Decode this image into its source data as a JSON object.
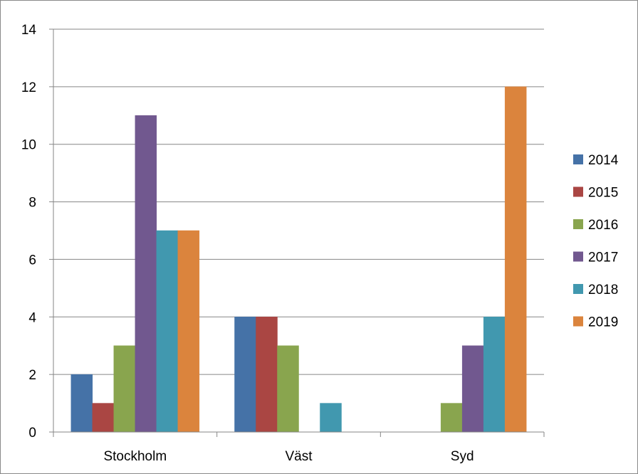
{
  "chart_data": {
    "type": "bar",
    "title": "",
    "xlabel": "",
    "ylabel": "",
    "ylim": [
      0,
      14
    ],
    "yticks": [
      0,
      2,
      4,
      6,
      8,
      10,
      12,
      14
    ],
    "grid": true,
    "legend_position": "right",
    "categories": [
      "Stockholm",
      "Väst",
      "Syd"
    ],
    "series": [
      {
        "name": "2014",
        "color": "#4572A7",
        "values": [
          2,
          4,
          0
        ]
      },
      {
        "name": "2015",
        "color": "#AA4643",
        "values": [
          1,
          4,
          0
        ]
      },
      {
        "name": "2016",
        "color": "#89A54E",
        "values": [
          3,
          3,
          1
        ]
      },
      {
        "name": "2017",
        "color": "#71588F",
        "values": [
          11,
          0,
          3
        ]
      },
      {
        "name": "2018",
        "color": "#4198AF",
        "values": [
          7,
          1,
          4
        ]
      },
      {
        "name": "2019",
        "color": "#DB843D",
        "values": [
          7,
          0,
          12
        ]
      }
    ]
  }
}
